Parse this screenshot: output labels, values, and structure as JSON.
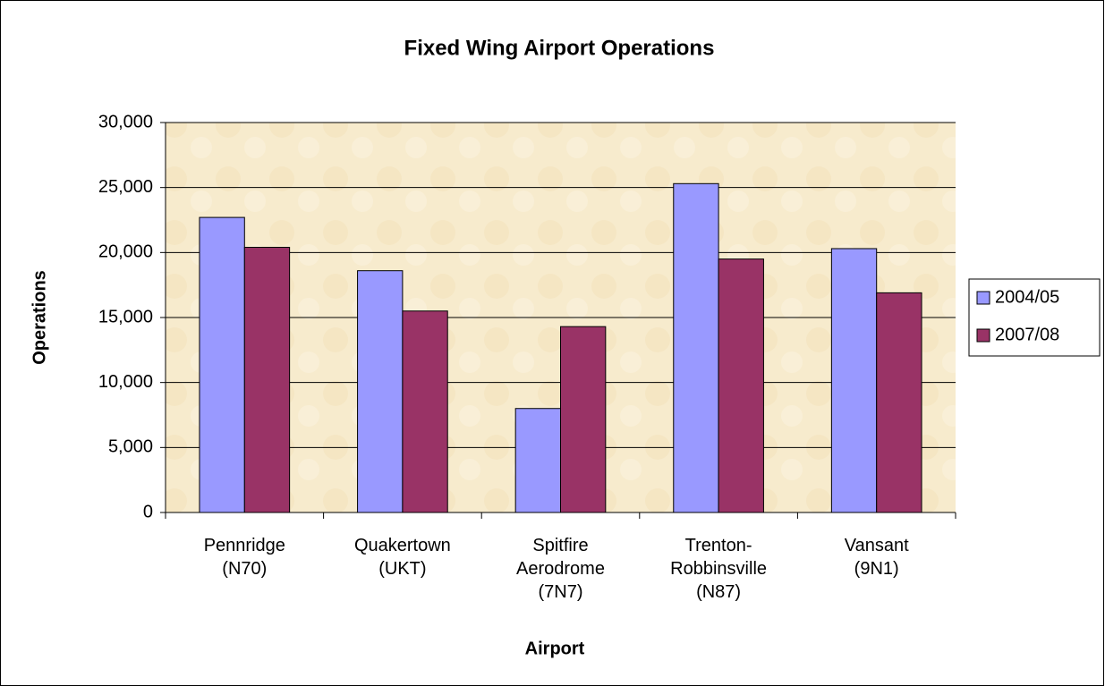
{
  "chart_data": {
    "type": "bar",
    "title": "Fixed Wing Airport Operations",
    "x_label": "Airport",
    "y_label": "Operations",
    "categories": [
      "Pennridge\n(N70)",
      "Quakertown\n(UKT)",
      "Spitfire\nAerodrome\n(7N7)",
      "Trenton-\nRobbinsville\n(N87)",
      "Vansant\n(9N1)"
    ],
    "series": [
      {
        "name": "2004/05",
        "color": "#9999ff",
        "values": [
          22700,
          18600,
          8000,
          25300,
          20300
        ]
      },
      {
        "name": "2007/08",
        "color": "#993366",
        "values": [
          20400,
          15500,
          14300,
          19500,
          16900
        ]
      }
    ],
    "ylim": [
      0,
      30000
    ],
    "yticks": [
      0,
      {
        "value": 5000,
        "label": "5,000"
      },
      {
        "value": 10000,
        "label": "10,000"
      },
      {
        "value": 15000,
        "label": "15,000"
      },
      {
        "value": 20000,
        "label": "20,000"
      },
      {
        "value": 25000,
        "label": "25,000"
      },
      {
        "value": 30000,
        "label": "30,000"
      }
    ],
    "grid": true,
    "legend": "right"
  }
}
